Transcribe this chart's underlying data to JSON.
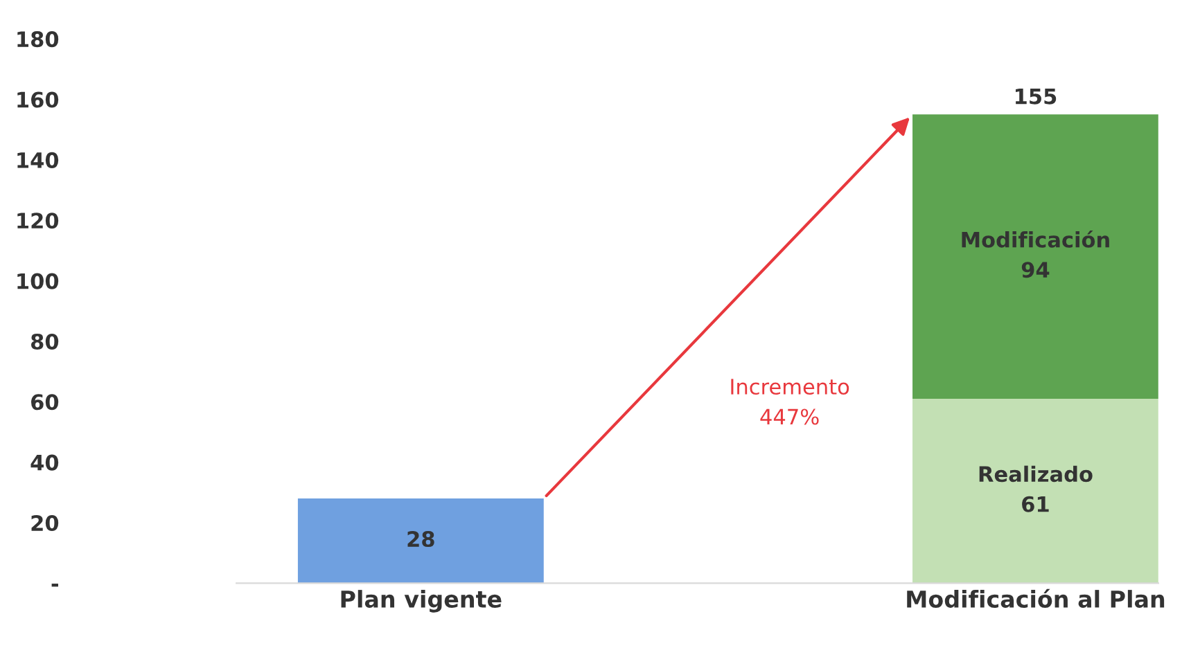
{
  "chart_data": {
    "type": "bar",
    "stacked": true,
    "categories": [
      "Plan vigente",
      "Modificación al Plan"
    ],
    "series": [
      {
        "color": "#6fa0e0",
        "values": [
          28,
          null
        ],
        "value_labels": [
          "28",
          null
        ]
      },
      {
        "name": "Realizado",
        "color": "#c3e0b4",
        "values": [
          null,
          61
        ],
        "value_labels": [
          null,
          "61"
        ]
      },
      {
        "name": "Modificación",
        "color": "#5ea451",
        "values": [
          null,
          94
        ],
        "value_labels": [
          null,
          "94"
        ]
      }
    ],
    "totals": [
      null,
      "155"
    ],
    "ylim": [
      0,
      180
    ],
    "yticks": [
      {
        "value": 0,
        "label": "-"
      },
      20,
      40,
      60,
      80,
      100,
      120,
      140,
      160,
      180
    ],
    "annotations": [
      "Incremento\n447%"
    ],
    "grid": false,
    "legend": false
  }
}
